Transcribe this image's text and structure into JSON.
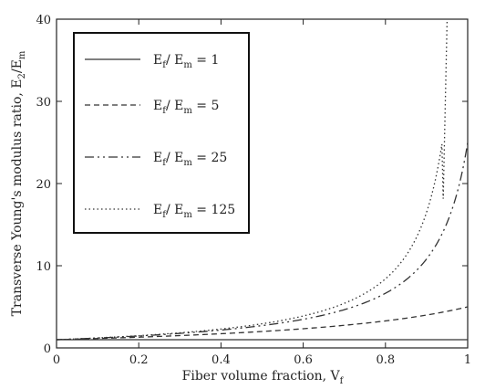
{
  "chart_data": {
    "type": "line",
    "title": "",
    "xlabel": "Fiber volume fraction, V",
    "xlabel_sub": "f",
    "ylabel": "Transverse Young's modulus ratio, E",
    "ylabel_sub1": "2",
    "ylabel_mid": "/E",
    "ylabel_sub2": "m",
    "xlim": [
      0,
      1
    ],
    "ylim": [
      0,
      40
    ],
    "xticks": [
      0,
      0.2,
      0.4,
      0.6,
      0.8,
      1
    ],
    "xtick_labels": [
      "0",
      "0.2",
      "0.4",
      "0.6",
      "0.8",
      "1"
    ],
    "yticks": [
      0,
      10,
      20,
      30,
      40
    ],
    "ytick_labels": [
      "0",
      "10",
      "20",
      "30",
      "40"
    ],
    "grid": false,
    "legend_position": "top-left",
    "series": [
      {
        "name": "Ef/Em = 1",
        "legend_text": "E",
        "legend_sub1": "f",
        "legend_mid": "/ E",
        "legend_sub2": "m",
        "legend_val": " = 1",
        "ratio": 1,
        "dash": "solid",
        "x": [
          0,
          0.5,
          1.0
        ],
        "y": [
          1,
          1,
          1
        ]
      },
      {
        "name": "Ef/Em = 5",
        "legend_text": "E",
        "legend_sub1": "f",
        "legend_mid": "/ E",
        "legend_sub2": "m",
        "legend_val": " = 5",
        "ratio": 5,
        "dash": "dashed",
        "x": [
          0,
          0.1,
          0.2,
          0.3,
          0.4,
          0.5,
          0.6,
          0.7,
          0.8,
          0.9,
          1.0
        ],
        "y": [
          1.0,
          1.09,
          1.2,
          1.33,
          1.5,
          1.71,
          2.0,
          2.42,
          3.0,
          3.75,
          4.8
        ]
      },
      {
        "name": "Ef/Em = 25",
        "legend_text": "E",
        "legend_sub1": "f",
        "legend_mid": "/ E",
        "legend_sub2": "m",
        "legend_val": " = 25",
        "ratio": 25,
        "dash": "dashdotdot",
        "x": [
          0,
          0.1,
          0.2,
          0.3,
          0.4,
          0.5,
          0.6,
          0.7,
          0.8,
          0.85,
          0.9,
          0.95,
          1.0
        ],
        "y": [
          1.0,
          1.1,
          1.24,
          1.41,
          1.63,
          1.93,
          2.38,
          3.1,
          4.4,
          5.5,
          8.3,
          13.3,
          25
        ]
      },
      {
        "name": "Ef/Em = 125",
        "legend_text": "E",
        "legend_sub1": "f",
        "legend_mid": "/ E",
        "legend_sub2": "m",
        "legend_val": " = 125",
        "ratio": 125,
        "dash": "dotted",
        "x": [
          0,
          0.1,
          0.2,
          0.3,
          0.4,
          0.5,
          0.6,
          0.7,
          0.8,
          0.85,
          0.9,
          0.92,
          0.94,
          0.95
        ],
        "y": [
          1.0,
          1.11,
          1.25,
          1.42,
          1.66,
          1.98,
          2.47,
          3.28,
          4.88,
          6.47,
          9.6,
          12.3,
          17.0,
          40
        ]
      }
    ]
  }
}
